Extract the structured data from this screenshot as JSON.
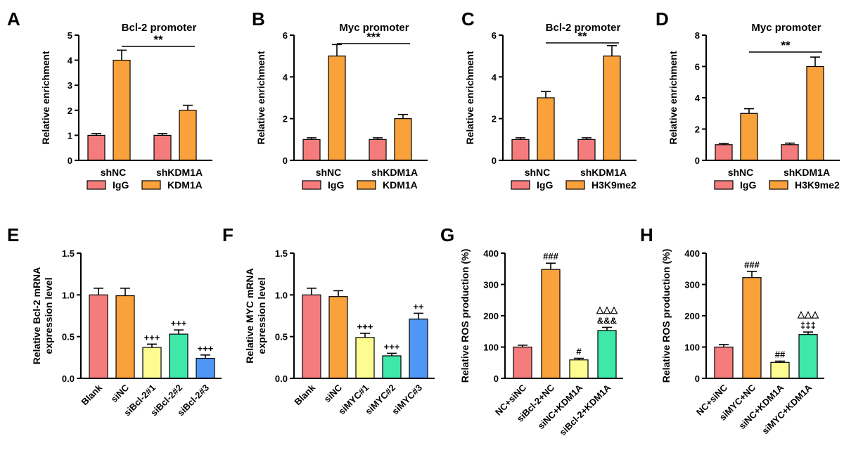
{
  "chart_data": [
    {
      "panel": "A",
      "type": "bar",
      "layout": "grouped",
      "title": "Bcl-2 promoter",
      "ylabel": "Relative enrichment",
      "xlabel": "",
      "ylim": [
        0,
        5
      ],
      "yticks": [
        "0",
        "1",
        "2",
        "3",
        "4",
        "5"
      ],
      "categories": [
        "shNC",
        "shKDM1A"
      ],
      "series": [
        {
          "name": "IgG",
          "color": "#f47c7c",
          "values": [
            1.0,
            1.0
          ],
          "errors": [
            0.07,
            0.07
          ]
        },
        {
          "name": "KDM1A",
          "color": "#f9a13a",
          "values": [
            4.0,
            2.0
          ],
          "errors": [
            0.4,
            0.2
          ]
        }
      ],
      "comparison": {
        "label": "**",
        "from_bar": 1,
        "to_bar": 3
      },
      "legend": "bottom"
    },
    {
      "panel": "B",
      "type": "bar",
      "layout": "grouped",
      "title": "Myc promoter",
      "ylabel": "Relative enrichment",
      "xlabel": "",
      "ylim": [
        0,
        6
      ],
      "yticks": [
        "0",
        "2",
        "4",
        "6"
      ],
      "categories": [
        "shNC",
        "shKDM1A"
      ],
      "series": [
        {
          "name": "IgG",
          "color": "#f47c7c",
          "values": [
            1.0,
            1.0
          ],
          "errors": [
            0.08,
            0.08
          ]
        },
        {
          "name": "KDM1A",
          "color": "#f9a13a",
          "values": [
            5.0,
            2.0
          ],
          "errors": [
            0.55,
            0.2
          ]
        }
      ],
      "comparison": {
        "label": "***",
        "from_bar": 1,
        "to_bar": 3
      },
      "legend": "bottom"
    },
    {
      "panel": "C",
      "type": "bar",
      "layout": "grouped",
      "title": "Bcl-2 promoter",
      "ylabel": "Relative enrichment",
      "xlabel": "",
      "ylim": [
        0,
        6
      ],
      "yticks": [
        "0",
        "2",
        "4",
        "6"
      ],
      "categories": [
        "shNC",
        "shKDM1A"
      ],
      "series": [
        {
          "name": "IgG",
          "color": "#f47c7c",
          "values": [
            1.0,
            1.0
          ],
          "errors": [
            0.08,
            0.08
          ]
        },
        {
          "name": "H3K9me2",
          "color": "#f9a13a",
          "values": [
            3.0,
            5.0
          ],
          "errors": [
            0.3,
            0.5
          ]
        }
      ],
      "comparison": {
        "label": "**",
        "from_bar": 1,
        "to_bar": 3
      },
      "legend": "bottom"
    },
    {
      "panel": "D",
      "type": "bar",
      "layout": "grouped",
      "title": "Myc promoter",
      "ylabel": "Relative enrichment",
      "xlabel": "",
      "ylim": [
        0,
        8
      ],
      "yticks": [
        "0",
        "2",
        "4",
        "6",
        "8"
      ],
      "categories": [
        "shNC",
        "shKDM1A"
      ],
      "series": [
        {
          "name": "IgG",
          "color": "#f47c7c",
          "values": [
            1.0,
            1.0
          ],
          "errors": [
            0.08,
            0.1
          ]
        },
        {
          "name": "H3K9me2",
          "color": "#f9a13a",
          "values": [
            3.0,
            6.0
          ],
          "errors": [
            0.3,
            0.6
          ]
        }
      ],
      "comparison": {
        "label": "**",
        "from_bar": 1,
        "to_bar": 3
      },
      "legend": "bottom"
    },
    {
      "panel": "E",
      "type": "bar",
      "layout": "simple",
      "title": "",
      "ylabel": [
        "Relative Bcl-2 mRNA",
        "expression level"
      ],
      "xlabel": "",
      "ylim": [
        0,
        1.5
      ],
      "yticks": [
        "0.0",
        "0.5",
        "1.0",
        "1.5"
      ],
      "categories": [
        "Blank",
        "siNC",
        "siBcl-2#1",
        "siBcl-2#2",
        "siBcl-2#3"
      ],
      "values": [
        1.0,
        0.99,
        0.37,
        0.53,
        0.24
      ],
      "errors": [
        0.08,
        0.09,
        0.04,
        0.05,
        0.04
      ],
      "colors": [
        "#f47c7c",
        "#f9a13a",
        "#fcfc90",
        "#3de8a9",
        "#4f96f5"
      ],
      "annotations": [
        "",
        "",
        "+++",
        "+++",
        "+++"
      ]
    },
    {
      "panel": "F",
      "type": "bar",
      "layout": "simple",
      "title": "",
      "ylabel": [
        "Relative MYC mRNA",
        "expression level"
      ],
      "xlabel": "",
      "ylim": [
        0,
        1.5
      ],
      "yticks": [
        "0.0",
        "0.5",
        "1.0",
        "1.5"
      ],
      "categories": [
        "Blank",
        "siNC",
        "siMYC#1",
        "siMYC#2",
        "siMYC#3"
      ],
      "values": [
        1.0,
        0.98,
        0.49,
        0.27,
        0.71
      ],
      "errors": [
        0.08,
        0.07,
        0.05,
        0.03,
        0.07
      ],
      "colors": [
        "#f47c7c",
        "#f9a13a",
        "#fcfc90",
        "#3de8a9",
        "#4f96f5"
      ],
      "annotations": [
        "",
        "",
        "+++",
        "+++",
        "++"
      ]
    },
    {
      "panel": "G",
      "type": "bar",
      "layout": "simple",
      "title": "",
      "ylabel": "Relative ROS production (%)",
      "xlabel": "",
      "ylim": [
        0,
        400
      ],
      "yticks": [
        "0",
        "100",
        "200",
        "300",
        "400"
      ],
      "categories": [
        "NC+siNC",
        "siBcl-2+NC",
        "siNC+KDM1A",
        "siBcl-2+KDM1A"
      ],
      "values": [
        100,
        348,
        59,
        153
      ],
      "errors": [
        6,
        20,
        5,
        10
      ],
      "colors": [
        "#f47c7c",
        "#f9a13a",
        "#fcfc90",
        "#3de8a9"
      ],
      "annotations": [
        [
          ""
        ],
        [
          "###"
        ],
        [
          "#"
        ],
        [
          "&&&",
          "△△△"
        ]
      ]
    },
    {
      "panel": "H",
      "type": "bar",
      "layout": "simple",
      "title": "",
      "ylabel": "Relative ROS production (%)",
      "xlabel": "",
      "ylim": [
        0,
        400
      ],
      "yticks": [
        "0",
        "100",
        "200",
        "300",
        "400"
      ],
      "categories": [
        "NC+siNC",
        "siMYC+NC",
        "siNC+KDM1A",
        "siMYC+KDM1A"
      ],
      "values": [
        100,
        322,
        51,
        140
      ],
      "errors": [
        8,
        20,
        4,
        8
      ],
      "colors": [
        "#f47c7c",
        "#f9a13a",
        "#fcfc90",
        "#3de8a9"
      ],
      "annotations": [
        [
          ""
        ],
        [
          "###"
        ],
        [
          "##"
        ],
        [
          "‡‡‡",
          "△△△"
        ]
      ]
    }
  ]
}
